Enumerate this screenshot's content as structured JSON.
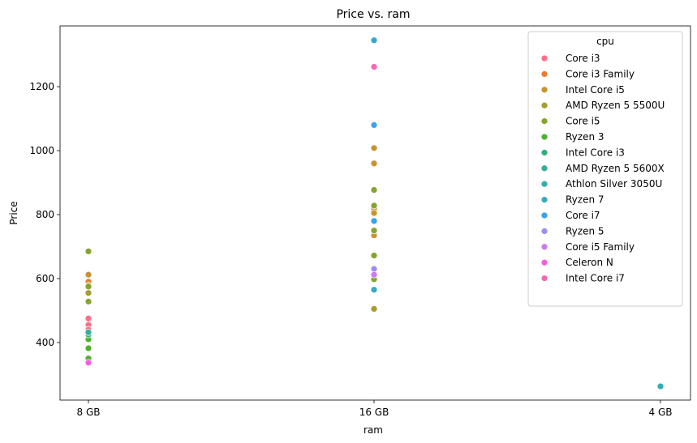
{
  "chart_data": {
    "type": "scatter",
    "title": "Price vs. ram",
    "xlabel": "ram",
    "ylabel": "Price",
    "categories": [
      "8 GB",
      "16 GB",
      "4 GB"
    ],
    "ylim": [
      220,
      1390
    ],
    "yticks": [
      400,
      600,
      800,
      1000,
      1200
    ],
    "grid": false,
    "legend": {
      "title": "cpu",
      "placement": "top-right"
    },
    "series": [
      {
        "name": "Core i3",
        "color": "#f77189",
        "points": [
          [
            "8 GB",
            475
          ],
          [
            "8 GB",
            455
          ],
          [
            "8 GB",
            440
          ]
        ]
      },
      {
        "name": "Core i3 Family",
        "color": "#e67e32",
        "points": [
          [
            "8 GB",
            590
          ]
        ]
      },
      {
        "name": "Intel Core i5",
        "color": "#c69432",
        "points": [
          [
            "8 GB",
            612
          ],
          [
            "16 GB",
            1008
          ],
          [
            "16 GB",
            960
          ],
          [
            "16 GB",
            817
          ],
          [
            "16 GB",
            805
          ],
          [
            "16 GB",
            735
          ]
        ]
      },
      {
        "name": "AMD Ryzen 5 5500U",
        "color": "#a49d31",
        "points": [
          [
            "8 GB",
            578
          ],
          [
            "8 GB",
            555
          ],
          [
            "16 GB",
            632
          ],
          [
            "16 GB",
            505
          ]
        ]
      },
      {
        "name": "Core i5",
        "color": "#86a431",
        "points": [
          [
            "8 GB",
            685
          ],
          [
            "8 GB",
            575
          ],
          [
            "8 GB",
            528
          ],
          [
            "16 GB",
            877
          ],
          [
            "16 GB",
            828
          ],
          [
            "16 GB",
            750
          ],
          [
            "16 GB",
            672
          ],
          [
            "16 GB",
            598
          ]
        ]
      },
      {
        "name": "Ryzen 3",
        "color": "#4fb131",
        "points": [
          [
            "8 GB",
            410
          ],
          [
            "8 GB",
            382
          ],
          [
            "8 GB",
            350
          ]
        ]
      },
      {
        "name": "Intel Core i3",
        "color": "#33b07a",
        "points": [
          [
            "8 GB",
            425
          ]
        ]
      },
      {
        "name": "AMD Ryzen 5 5600X",
        "color": "#35ad9c",
        "points": [
          [
            "8 GB",
            432
          ]
        ]
      },
      {
        "name": "Athlon Silver 3050U",
        "color": "#37abb4",
        "points": [
          [
            "4 GB",
            263
          ]
        ]
      },
      {
        "name": "Ryzen 7",
        "color": "#38a9c5",
        "points": [
          [
            "16 GB",
            1345
          ],
          [
            "16 GB",
            565
          ]
        ]
      },
      {
        "name": "Core i7",
        "color": "#3ba3ec",
        "points": [
          [
            "16 GB",
            1080
          ],
          [
            "16 GB",
            780
          ]
        ]
      },
      {
        "name": "Ryzen 5",
        "color": "#9b8ef4",
        "points": [
          [
            "16 GB",
            630
          ]
        ]
      },
      {
        "name": "Core i5 Family",
        "color": "#cc79f4",
        "points": [
          [
            "16 GB",
            612
          ]
        ]
      },
      {
        "name": "Celeron N",
        "color": "#f45fe1",
        "points": [
          [
            "8 GB",
            337
          ]
        ]
      },
      {
        "name": "Intel Core i7",
        "color": "#f668b3",
        "points": [
          [
            "16 GB",
            1262
          ]
        ]
      }
    ]
  }
}
